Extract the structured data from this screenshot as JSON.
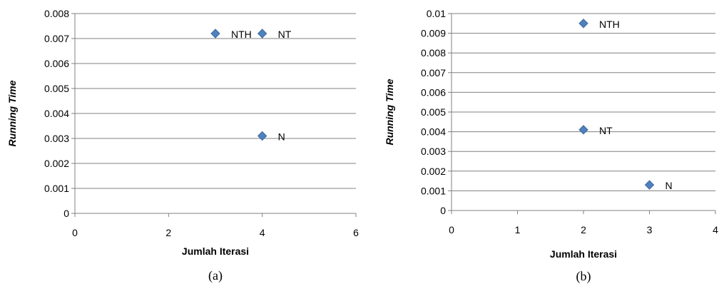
{
  "chart_data": [
    {
      "type": "scatter",
      "caption": "(a)",
      "xlabel": "Jumlah Iterasi",
      "ylabel": "Running Time",
      "xlim": [
        0,
        6
      ],
      "ylim": [
        0,
        0.008
      ],
      "x_ticks": [
        "0",
        "2",
        "4",
        "6"
      ],
      "y_ticks": [
        "0",
        "0.001",
        "0.002",
        "0.003",
        "0.004",
        "0.005",
        "0.006",
        "0.007",
        "0.008"
      ],
      "grid": "horizontal",
      "marker_color": "#4F81BD",
      "points": [
        {
          "label": "NTH",
          "x": 3,
          "y": 0.0072
        },
        {
          "label": "NT",
          "x": 4,
          "y": 0.0072
        },
        {
          "label": "N",
          "x": 4,
          "y": 0.0031
        }
      ]
    },
    {
      "type": "scatter",
      "caption": "(b)",
      "xlabel": "Jumlah Iterasi",
      "ylabel": "Running Time",
      "xlim": [
        0,
        4
      ],
      "ylim": [
        0,
        0.01
      ],
      "x_ticks": [
        "0",
        "1",
        "2",
        "3",
        "4"
      ],
      "y_ticks": [
        "0",
        "0.001",
        "0.002",
        "0.003",
        "0.004",
        "0.005",
        "0.006",
        "0.007",
        "0.008",
        "0.009",
        "0.01"
      ],
      "grid": "horizontal",
      "marker_color": "#4F81BD",
      "points": [
        {
          "label": "NTH",
          "x": 2,
          "y": 0.0095
        },
        {
          "label": "NT",
          "x": 2,
          "y": 0.0041
        },
        {
          "label": "N",
          "x": 3,
          "y": 0.0013
        }
      ]
    }
  ]
}
